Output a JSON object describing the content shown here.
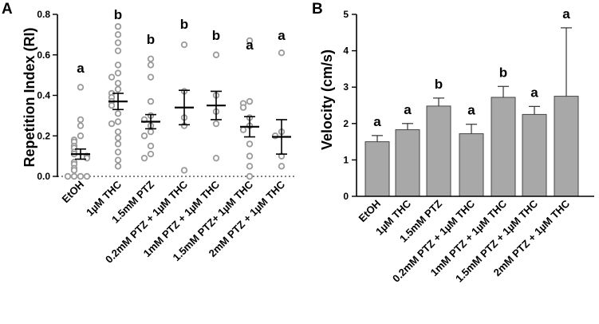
{
  "panels": {
    "a_letter": "A",
    "b_letter": "B"
  },
  "chart_data": [
    {
      "type": "scatter",
      "ylabel": "Repetition Index (RI)",
      "ylim": [
        0,
        0.8
      ],
      "yticks": [
        "0.0",
        "0.2",
        "0.4",
        "0.6",
        "0.8"
      ],
      "reference_line": 0,
      "categories": [
        "EtOH",
        "1µM THC",
        "1.5mM PTZ",
        "0.2mM PTZ + 1µM THC",
        "1mM PTZ + 1µM THC",
        "1.5mM PTZ+ 1µM THC",
        "2mM PTZ + 1µM THC"
      ],
      "significance": [
        "a",
        "b",
        "b",
        "b",
        "b",
        "a",
        "a"
      ],
      "means": [
        0.11,
        0.37,
        0.27,
        0.34,
        0.35,
        0.245,
        0.195
      ],
      "sem": [
        0.025,
        0.04,
        0.035,
        0.085,
        0.07,
        0.05,
        0.085
      ],
      "points": [
        [
          0.44,
          0.28,
          0.25,
          0.2,
          0.18,
          0.17,
          0.15,
          0.14,
          0.12,
          0.11,
          0.1,
          0.09,
          0.07,
          0.06,
          0.04,
          0.03,
          0.0,
          0.0,
          0.0,
          0.0
        ],
        [
          0.74,
          0.7,
          0.66,
          0.62,
          0.55,
          0.51,
          0.49,
          0.46,
          0.43,
          0.41,
          0.39,
          0.37,
          0.35,
          0.31,
          0.27,
          0.26,
          0.22,
          0.19,
          0.16,
          0.12,
          0.08,
          0.05
        ],
        [
          0.58,
          0.55,
          0.49,
          0.37,
          0.3,
          0.28,
          0.25,
          0.22,
          0.2,
          0.15,
          0.11,
          0.09
        ],
        [
          0.65,
          0.42,
          0.29,
          0.25,
          0.03
        ],
        [
          0.6,
          0.4,
          0.32,
          0.26,
          0.09
        ],
        [
          0.67,
          0.37,
          0.36,
          0.34,
          0.29,
          0.25,
          0.23,
          0.16,
          0.1,
          0.05,
          0.0
        ],
        [
          0.61,
          0.22,
          0.2,
          0.1,
          0.05
        ]
      ]
    },
    {
      "type": "bar",
      "ylabel": "Velocity (cm/s)",
      "ylim": [
        0,
        5
      ],
      "yticks": [
        "0",
        "1",
        "2",
        "3",
        "4",
        "5"
      ],
      "categories": [
        "EtOH",
        "1µM THC",
        "1.5mM PTZ",
        "0.2mM PTZ + 1µM THC",
        "1mM PTZ + 1µM THC",
        "1.5mM PTZ + 1µM THC",
        "2mM PTZ + 1µM THC"
      ],
      "significance": [
        "a",
        "a",
        "b",
        "a",
        "b",
        "a",
        "a"
      ],
      "values": [
        1.5,
        1.83,
        2.48,
        1.72,
        2.72,
        2.25,
        2.75
      ],
      "error_upper": [
        0.17,
        0.17,
        0.22,
        0.26,
        0.3,
        0.22,
        1.88
      ],
      "color": "#a8a8a8"
    }
  ]
}
